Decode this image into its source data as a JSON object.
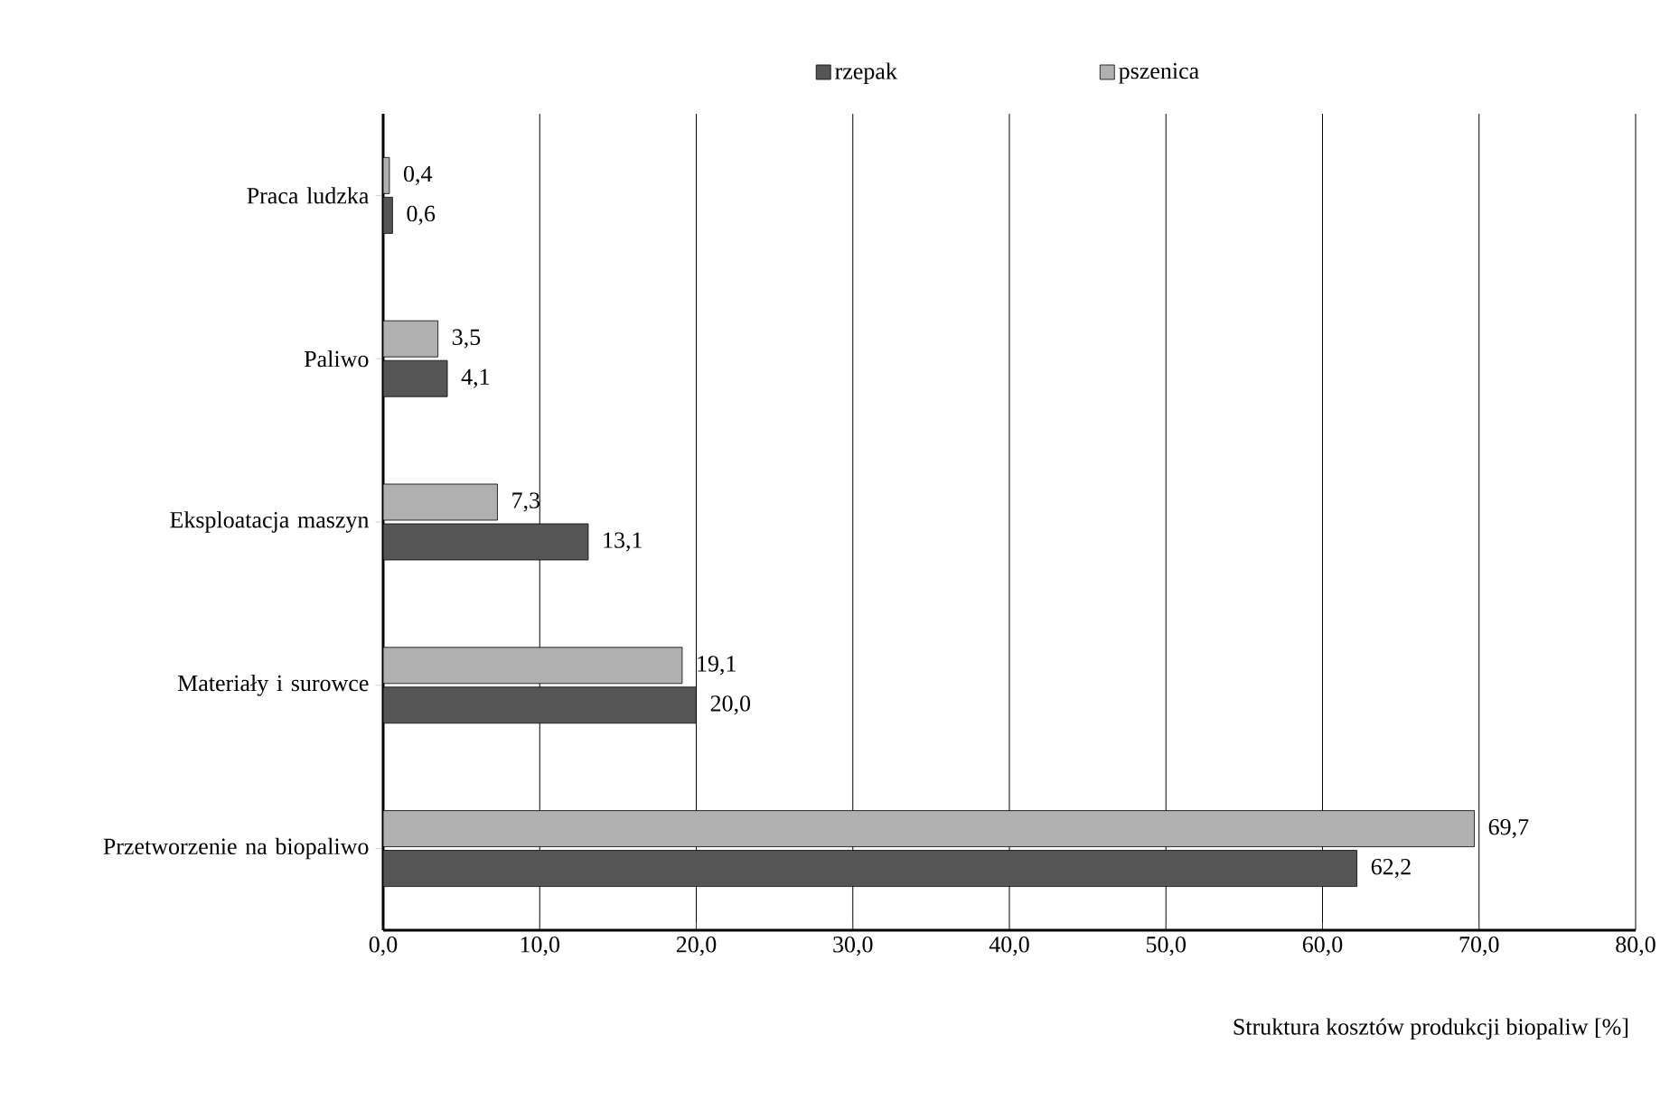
{
  "chart_data": {
    "type": "bar",
    "orientation": "horizontal",
    "xlabel": "Struktura kosztów produkcji biopaliw [%]",
    "categories": [
      "Praca ludzka",
      "Paliwo",
      "Eksploatacja maszyn",
      "Materiały i surowce",
      "Przetworzenie na biopaliwo"
    ],
    "series": [
      {
        "name": "rzepak",
        "color": "#555555",
        "values": [
          0.6,
          4.1,
          13.1,
          20.0,
          62.2
        ],
        "value_labels": [
          "0,6",
          "4,1",
          "13,1",
          "20,0",
          "62,2"
        ]
      },
      {
        "name": "pszenica",
        "color": "#b0b0b0",
        "values": [
          0.4,
          3.5,
          7.3,
          19.1,
          69.7
        ],
        "value_labels": [
          "0,4",
          "3,5",
          "7,3",
          "19,1",
          "69,7"
        ]
      }
    ],
    "xlim": [
      0,
      80
    ],
    "xticks": [
      {
        "value": 0,
        "label": "0,0"
      },
      {
        "value": 10,
        "label": "10,0"
      },
      {
        "value": 20,
        "label": "20,0"
      },
      {
        "value": 30,
        "label": "30,0"
      },
      {
        "value": 40,
        "label": "40,0"
      },
      {
        "value": 50,
        "label": "50,0"
      },
      {
        "value": 60,
        "label": "60,0"
      },
      {
        "value": 70,
        "label": "70,0"
      },
      {
        "value": 80,
        "label": "80,0"
      }
    ],
    "grid": "x",
    "legend": "top"
  }
}
